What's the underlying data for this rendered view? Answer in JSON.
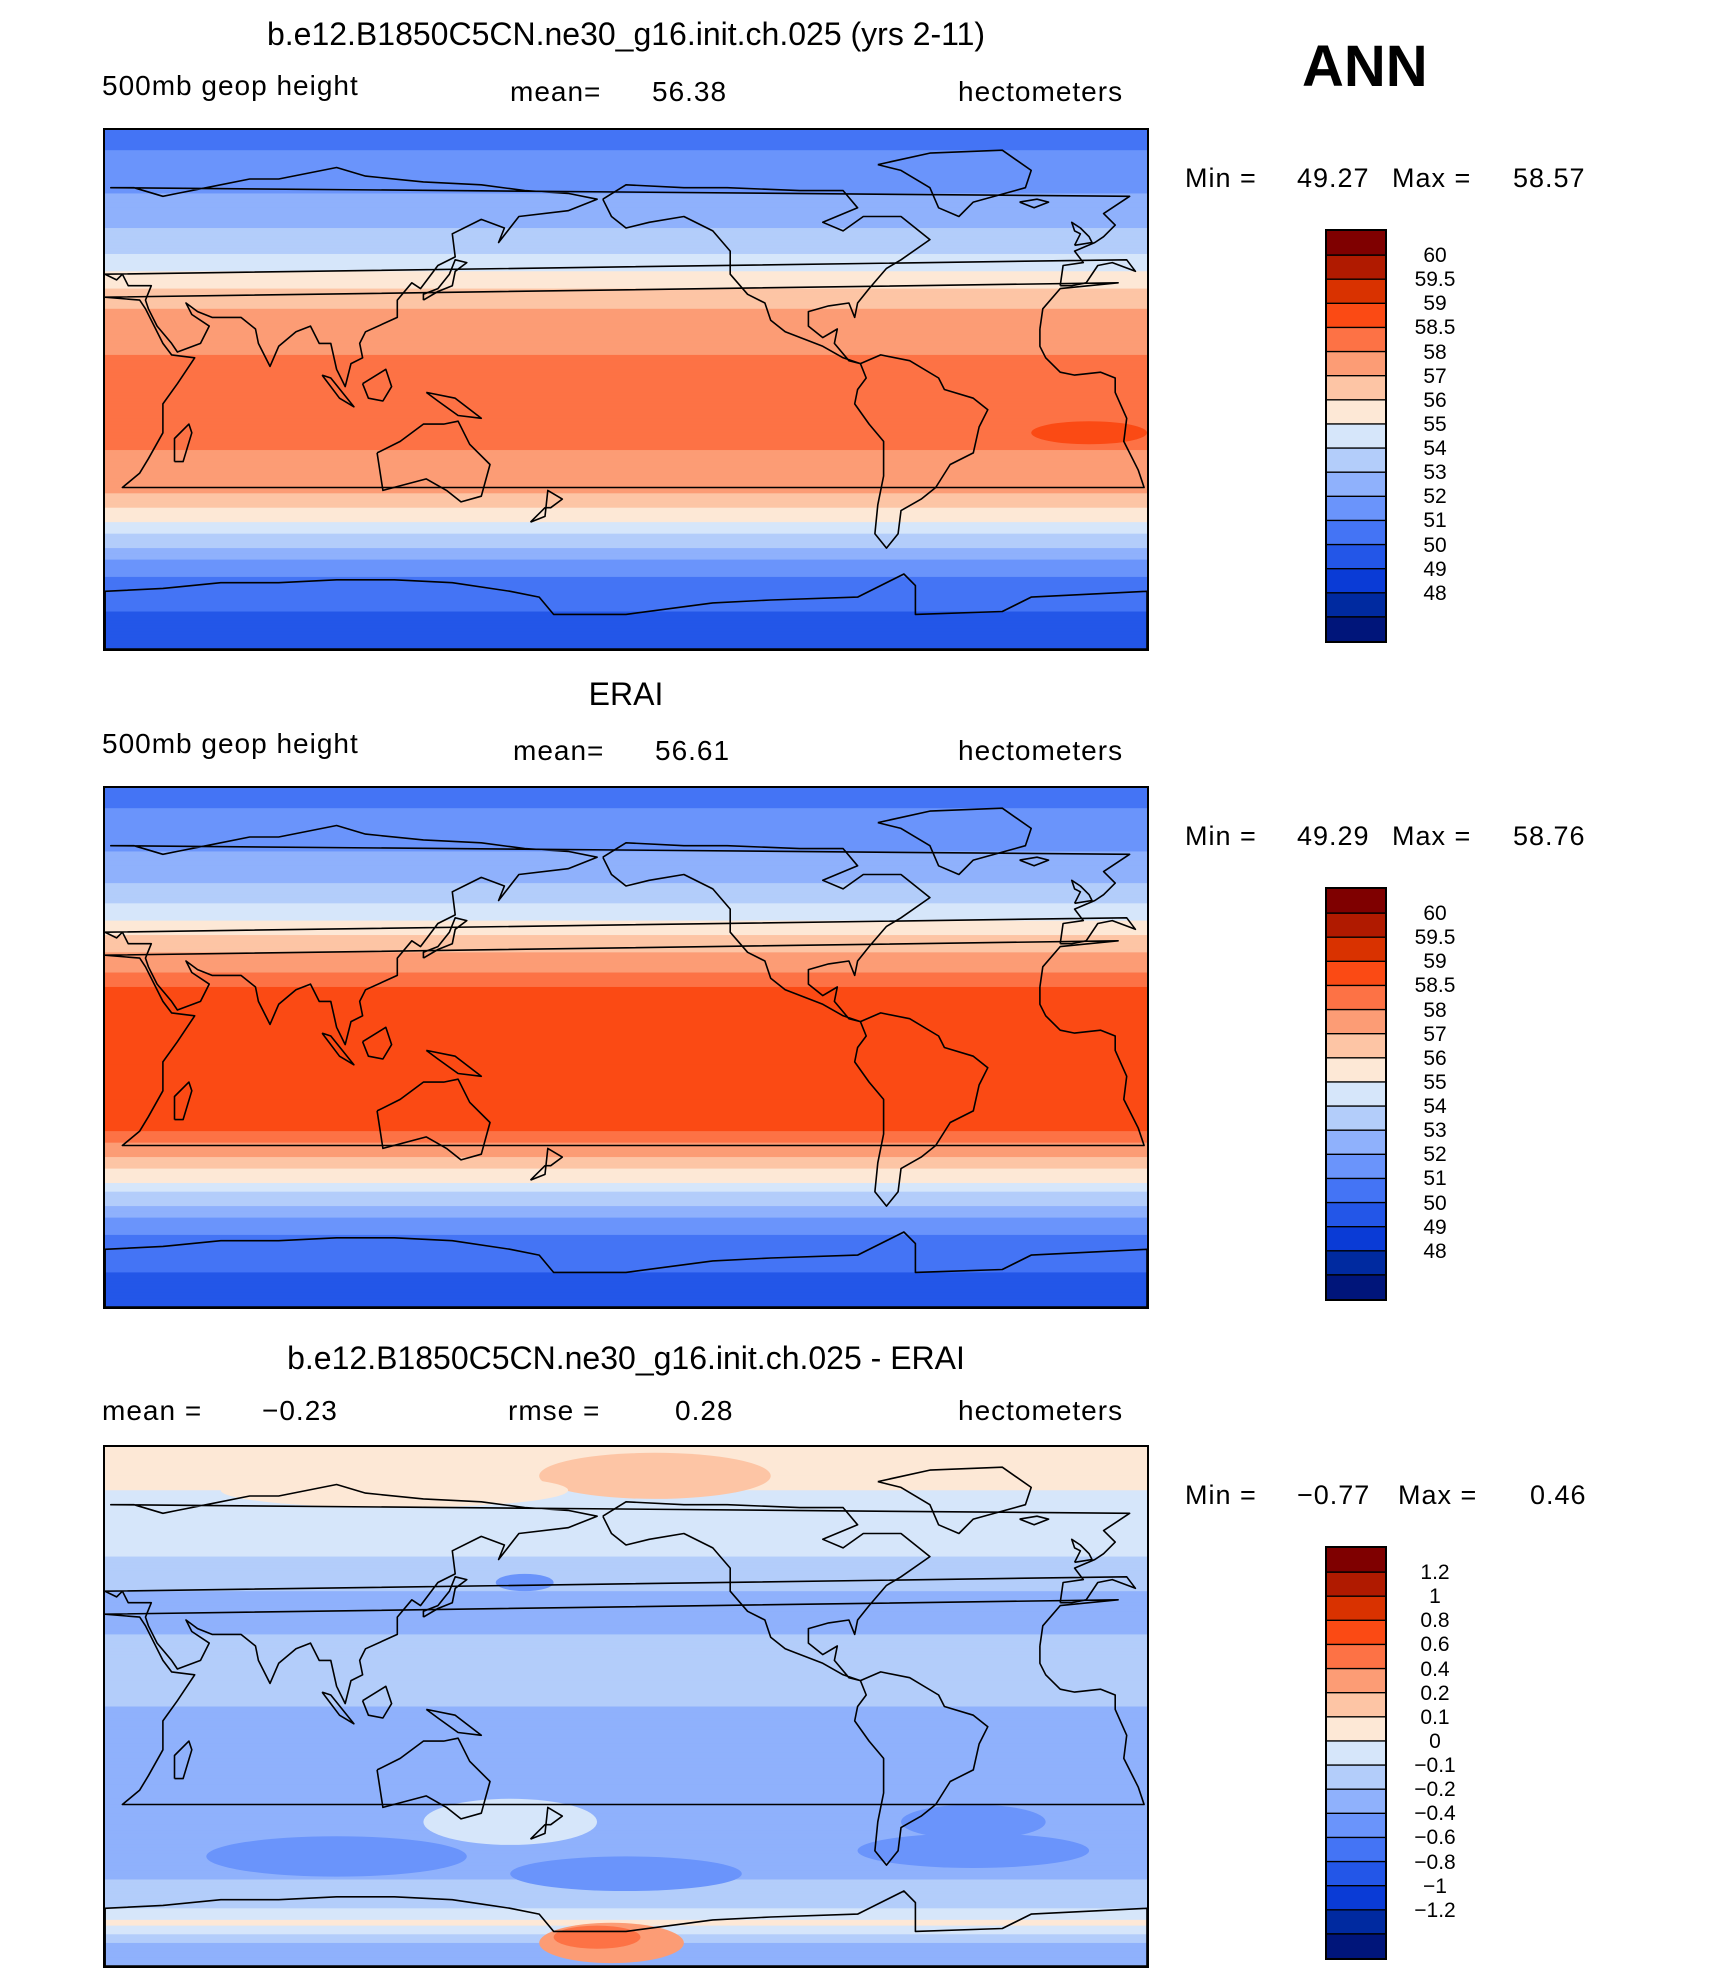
{
  "header": {
    "season": "ANN"
  },
  "chart_data": [
    {
      "type": "heatmap",
      "id": "model",
      "title": "b.e12.B1850C5CN.ne30_g16.init.ch.025 (yrs 2-11)",
      "variable": "500mb geop height",
      "stat_label": "mean=",
      "stat_value": "56.38",
      "units": "hectometers",
      "min_label": "Min =",
      "min_value": "49.27",
      "max_label": "Max =",
      "max_value": "58.57",
      "levels": [
        "60",
        "59.5",
        "59",
        "58.5",
        "58",
        "57",
        "56",
        "55",
        "54",
        "53",
        "52",
        "51",
        "50",
        "49",
        "48"
      ],
      "colors": [
        "#7f0000",
        "#b01a00",
        "#d93200",
        "#fb4a14",
        "#fd7245",
        "#fc9c75",
        "#fdc5a5",
        "#fde8d6",
        "#d6e6fa",
        "#b3cdfa",
        "#8fb1fc",
        "#6a94fb",
        "#4474f5",
        "#2356e8",
        "#0a3bd6",
        "#002aa0",
        "#00157a"
      ],
      "profile": [
        [
          -90,
          49.6
        ],
        [
          -80,
          49.8
        ],
        [
          -72,
          50.3
        ],
        [
          -65,
          51.0
        ],
        [
          -58,
          52.2
        ],
        [
          -52,
          53.6
        ],
        [
          -47,
          54.8
        ],
        [
          -42,
          55.9
        ],
        [
          -36,
          57.0
        ],
        [
          -28,
          57.8
        ],
        [
          -18,
          58.1
        ],
        [
          0,
          58.1
        ],
        [
          12,
          58.0
        ],
        [
          20,
          57.7
        ],
        [
          28,
          57.0
        ],
        [
          36,
          55.8
        ],
        [
          44,
          54.4
        ],
        [
          52,
          53.4
        ],
        [
          60,
          52.6
        ],
        [
          70,
          51.8
        ],
        [
          80,
          51.1
        ],
        [
          90,
          50.7
        ]
      ],
      "blobs": [
        {
          "cx": 360,
          "cy": -15,
          "rx": 20,
          "ry": 4,
          "v": 58.7
        },
        {
          "cx": 430,
          "cy": -15,
          "rx": 25,
          "ry": 4,
          "v": 58.7
        },
        {
          "cx": 820,
          "cy": -3,
          "rx": 35,
          "ry": 3,
          "v": 58.7
        }
      ]
    },
    {
      "type": "heatmap",
      "id": "obs",
      "title": "ERAI",
      "variable": "500mb geop height",
      "stat_label": "mean=",
      "stat_value": "56.61",
      "units": "hectometers",
      "min_label": "Min =",
      "min_value": "49.29",
      "max_label": "Max =",
      "max_value": "58.76",
      "levels": [
        "60",
        "59.5",
        "59",
        "58.5",
        "58",
        "57",
        "56",
        "55",
        "54",
        "53",
        "52",
        "51",
        "50",
        "49",
        "48"
      ],
      "colors": [
        "#7f0000",
        "#b01a00",
        "#d93200",
        "#fb4a14",
        "#fd7245",
        "#fc9c75",
        "#fdc5a5",
        "#fde8d6",
        "#d6e6fa",
        "#b3cdfa",
        "#8fb1fc",
        "#6a94fb",
        "#4474f5",
        "#2356e8",
        "#0a3bd6",
        "#002aa0",
        "#00157a"
      ],
      "profile": [
        [
          -90,
          49.6
        ],
        [
          -80,
          49.9
        ],
        [
          -72,
          50.4
        ],
        [
          -65,
          51.0
        ],
        [
          -58,
          52.2
        ],
        [
          -52,
          53.6
        ],
        [
          -47,
          54.9
        ],
        [
          -42,
          56.1
        ],
        [
          -36,
          57.6
        ],
        [
          -28,
          58.6
        ],
        [
          -18,
          58.7
        ],
        [
          0,
          58.7
        ],
        [
          12,
          58.7
        ],
        [
          20,
          58.6
        ],
        [
          28,
          57.8
        ],
        [
          36,
          56.6
        ],
        [
          44,
          55.0
        ],
        [
          52,
          53.6
        ],
        [
          60,
          52.6
        ],
        [
          70,
          51.8
        ],
        [
          80,
          51.1
        ],
        [
          90,
          50.7
        ]
      ],
      "blobs": []
    },
    {
      "type": "heatmap",
      "id": "diff",
      "title": "b.e12.B1850C5CN.ne30_g16.init.ch.025 - ERAI",
      "stat_label": "mean =",
      "stat_value": "−0.23",
      "stat2_label": "rmse =",
      "stat2_value": "0.28",
      "units": "hectometers",
      "min_label": "Min =",
      "min_value": "−0.77",
      "max_label": "Max =",
      "max_value": "0.46",
      "levels": [
        "1.2",
        "1",
        "0.8",
        "0.6",
        "0.4",
        "0.2",
        "0.1",
        "0",
        "−0.1",
        "−0.2",
        "−0.4",
        "−0.6",
        "−0.8",
        "−1",
        "−1.2"
      ],
      "colors": [
        "#7f0000",
        "#b01a00",
        "#d93200",
        "#fb4a14",
        "#fd7245",
        "#fc9c75",
        "#fdc5a5",
        "#fde8d6",
        "#d6e6fa",
        "#b3cdfa",
        "#8fb1fc",
        "#6a94fb",
        "#4474f5",
        "#2356e8",
        "#0a3bd6",
        "#002aa0",
        "#00157a"
      ],
      "profile": [
        [
          -90,
          -0.25
        ],
        [
          -82,
          -0.2
        ],
        [
          -75,
          0.02
        ],
        [
          -68,
          -0.15
        ],
        [
          -60,
          -0.2
        ],
        [
          -52,
          -0.25
        ],
        [
          -45,
          -0.33
        ],
        [
          -35,
          -0.28
        ],
        [
          -25,
          -0.23
        ],
        [
          0,
          -0.2
        ],
        [
          25,
          -0.2
        ],
        [
          35,
          -0.25
        ],
        [
          45,
          -0.15
        ],
        [
          55,
          -0.08
        ],
        [
          65,
          -0.03
        ],
        [
          75,
          0.0
        ],
        [
          85,
          0.02
        ],
        [
          90,
          0.02
        ]
      ],
      "blobs": [
        {
          "cx": 100,
          "cy": -52,
          "rx": 45,
          "ry": 7,
          "v": -0.5
        },
        {
          "cx": 200,
          "cy": -58,
          "rx": 40,
          "ry": 6,
          "v": -0.5
        },
        {
          "cx": 320,
          "cy": -50,
          "rx": 40,
          "ry": 6,
          "v": -0.45
        },
        {
          "cx": 160,
          "cy": -40,
          "rx": 30,
          "ry": 8,
          "v": -0.05
        },
        {
          "cx": 195,
          "cy": -82,
          "rx": 25,
          "ry": 7,
          "v": 0.25
        },
        {
          "cx": 190,
          "cy": -80,
          "rx": 15,
          "ry": 4,
          "v": 0.45
        },
        {
          "cx": 165,
          "cy": 43,
          "rx": 10,
          "ry": 3,
          "v": -0.5
        },
        {
          "cx": 210,
          "cy": 80,
          "rx": 40,
          "ry": 8,
          "v": 0.15
        },
        {
          "cx": 70,
          "cy": 68,
          "rx": 30,
          "ry": 6,
          "v": -0.05
        },
        {
          "cx": 120,
          "cy": 75,
          "rx": 60,
          "ry": 6,
          "v": 0.05
        },
        {
          "cx": -40,
          "cy": -40,
          "rx": 25,
          "ry": 6,
          "v": -0.5
        }
      ]
    }
  ]
}
